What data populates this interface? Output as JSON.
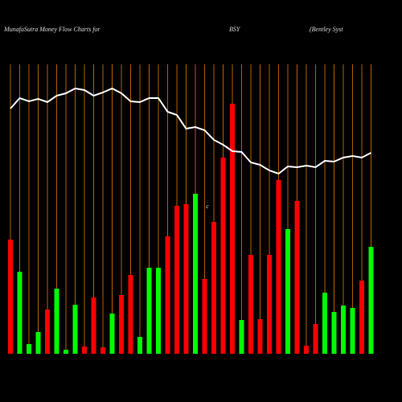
{
  "chart_data": {
    "type": "bar",
    "title": "MunafaSutra  Money Flow  Charts for",
    "symbol": "BSY",
    "subtitle": "(Bentley Syst",
    "annotation": "c",
    "categories": [
      null,
      null,
      null,
      null,
      null,
      null,
      null,
      null,
      null,
      null,
      null,
      null,
      null,
      null,
      null,
      null,
      null,
      null,
      null,
      null,
      null,
      null,
      null,
      null,
      null,
      null,
      null,
      null,
      null,
      null,
      null,
      null,
      null,
      null,
      null,
      null,
      null,
      null,
      null,
      null
    ],
    "ylim": [
      0,
      360
    ],
    "grid_color": "#b06000",
    "series": [
      {
        "type": "bar",
        "values": [
          142,
          102,
          12,
          27,
          55,
          81,
          5,
          61,
          9,
          70,
          8,
          50,
          73,
          98,
          21,
          107,
          107,
          146,
          184,
          186,
          199,
          93,
          164,
          244,
          311,
          42,
          123,
          43,
          123,
          216,
          155,
          190,
          10,
          37,
          76,
          52,
          60,
          57,
          91,
          133
        ],
        "colors": [
          "#ff0000",
          "#00ff00",
          "#00ff00",
          "#00ff00",
          "#ff0000",
          "#00ff00",
          "#00ff00",
          "#00ff00",
          "#ff0000",
          "#ff0000",
          "#ff0000",
          "#00ff00",
          "#ff0000",
          "#ff0000",
          "#00ff00",
          "#00ff00",
          "#00ff00",
          "#ff0000",
          "#ff0000",
          "#ff0000",
          "#00ff00",
          "#ff0000",
          "#ff0000",
          "#ff0000",
          "#ff0000",
          "#00ff00",
          "#ff0000",
          "#ff0000",
          "#ff0000",
          "#ff0000",
          "#00ff00",
          "#ff0000",
          "#ff0000",
          "#ff0000",
          "#00ff00",
          "#00ff00",
          "#00ff00",
          "#00ff00",
          "#ff0000",
          "#00ff00"
        ]
      },
      {
        "type": "line",
        "color": "#ffffff",
        "values": [
          305,
          318,
          314,
          317,
          313,
          321,
          324,
          330,
          328,
          321,
          325,
          330,
          324,
          314,
          313,
          318,
          318,
          301,
          297,
          280,
          282,
          278,
          266,
          260,
          252,
          251,
          238,
          235,
          228,
          224,
          233,
          232,
          234,
          232,
          240,
          239,
          244,
          246,
          244,
          250
        ]
      }
    ]
  }
}
